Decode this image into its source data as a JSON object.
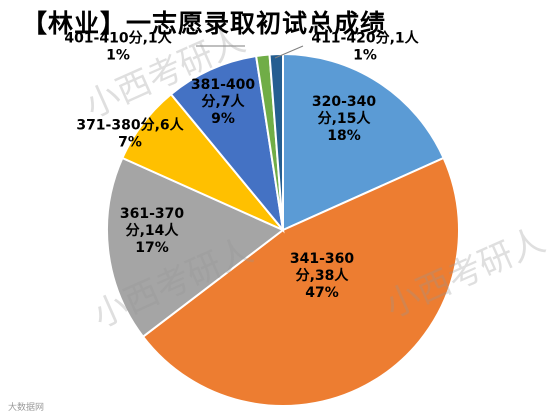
{
  "chart_data": {
    "type": "pie",
    "title": "【林业】一志愿录取初试总成绩",
    "slices": [
      {
        "label": "320-340分,15人",
        "range": "320-340分",
        "count": 15,
        "percent": "18%",
        "color": "#5b9bd5"
      },
      {
        "label": "341-360分,38人",
        "range": "341-360分",
        "count": 38,
        "percent": "47%",
        "color": "#ed7d31"
      },
      {
        "label": "361-370分,14人",
        "range": "361-370分",
        "count": 14,
        "percent": "17%",
        "color": "#a5a5a5"
      },
      {
        "label": "371-380分,6人",
        "range": "371-380分",
        "count": 6,
        "percent": "7%",
        "color": "#ffc000"
      },
      {
        "label": "381-400分,7人",
        "range": "381-400分",
        "count": 7,
        "percent": "9%",
        "color": "#4472c4"
      },
      {
        "label": "401-410分,1人",
        "range": "401-410分",
        "count": 1,
        "percent": "1%",
        "color": "#70ad47"
      },
      {
        "label": "411-420分,1人",
        "range": "411-420分",
        "count": 1,
        "percent": "1%",
        "color": "#255e91"
      }
    ],
    "start_angle_deg": 0,
    "direction": "clockwise",
    "legend": "none"
  },
  "watermark": "小西考研人",
  "source": "大数据网"
}
